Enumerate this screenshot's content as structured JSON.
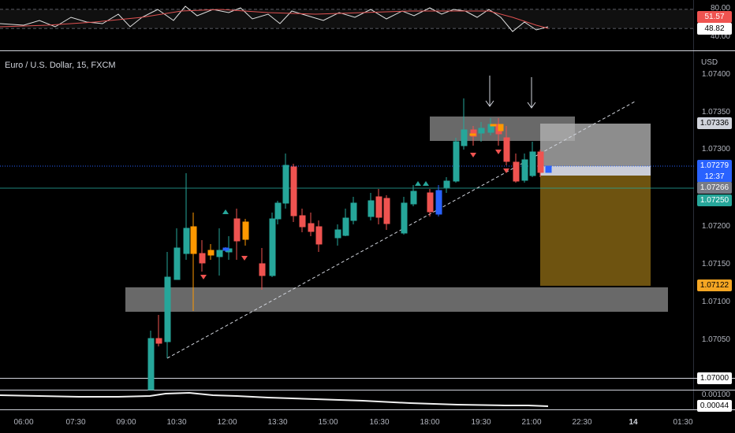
{
  "symbol": {
    "legend": "Euro / U.S. Dollar, 15, FXCM"
  },
  "currency": "USD",
  "rsi_pane": {
    "levels": [
      "80.00",
      "48.82"
    ],
    "tags": {
      "red": "51.57",
      "white": "48.82"
    },
    "bottom_cut_label": "40.00"
  },
  "price_axis": {
    "ticks": [
      "1.07400",
      "1.07350",
      "1.07300",
      "1.07200",
      "1.07150",
      "1.07100",
      "1.07050",
      "1.07000"
    ]
  },
  "price_tags": {
    "gray_top": "1.07336",
    "current_price": "1.07279",
    "countdown": "12:37",
    "gray_mid": "1.07266",
    "green": "1.07250",
    "orange": "1.07122"
  },
  "lower_pane": {
    "top_label": "0.00100",
    "value_label": "0.00044"
  },
  "time_axis": [
    "06:00",
    "07:30",
    "09:00",
    "10:30",
    "12:00",
    "13:30",
    "15:00",
    "16:30",
    "18:00",
    "19:30",
    "21:00",
    "22:30",
    "14",
    "01:30"
  ],
  "colors": {
    "up": "#26a69a",
    "down": "#ef5350",
    "orange": "#ff9800",
    "blue": "#2962ff",
    "zone_gray": "#8c8c8c",
    "target_brown": "#7a5c12"
  }
}
